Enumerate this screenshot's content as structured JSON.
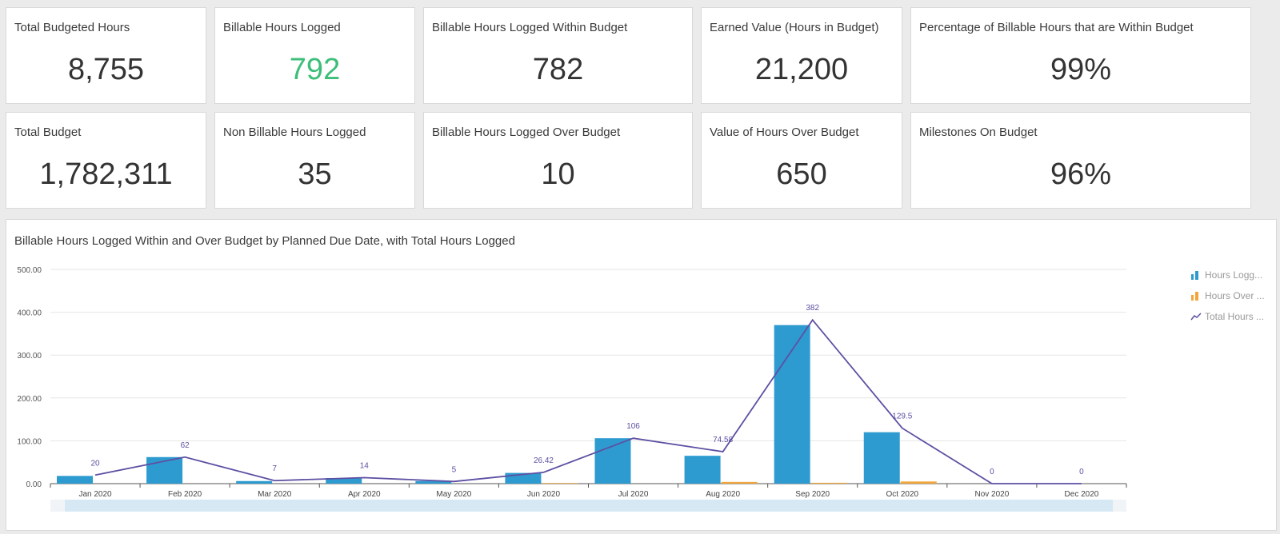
{
  "kpis": [
    {
      "label": "Total Budgeted Hours",
      "value": "8,755",
      "color": "#333333"
    },
    {
      "label": "Billable Hours Logged",
      "value": "792",
      "color": "#3cbe78"
    },
    {
      "label": "Billable Hours Logged Within Budget",
      "value": "782",
      "color": "#333333"
    },
    {
      "label": "Earned Value (Hours in Budget)",
      "value": "21,200",
      "color": "#333333"
    },
    {
      "label": "Percentage of Billable Hours that are Within Budget",
      "value": "99%",
      "color": "#333333"
    },
    {
      "label": "Total Budget",
      "value": "1,782,311",
      "color": "#333333"
    },
    {
      "label": "Non Billable Hours Logged",
      "value": "35",
      "color": "#333333"
    },
    {
      "label": "Billable Hours Logged Over Budget",
      "value": "10",
      "color": "#333333"
    },
    {
      "label": "Value of Hours Over Budget",
      "value": "650",
      "color": "#333333"
    },
    {
      "label": "Milestones On Budget",
      "value": "96%",
      "color": "#333333"
    }
  ],
  "chart": {
    "title": "Billable Hours Logged Within and Over Budget by Planned Due Date, with Total Hours Logged"
  },
  "legend": [
    {
      "label": "Hours Logg...",
      "icon": "bar-chart-icon",
      "color": "#2e9bd0"
    },
    {
      "label": "Hours Over ...",
      "icon": "bar-chart-icon",
      "color": "#f2a53a"
    },
    {
      "label": "Total Hours ...",
      "icon": "line-chart-icon",
      "color": "#5e4fa2"
    }
  ],
  "chart_data": {
    "type": "bar",
    "title": "Billable Hours Logged Within and Over Budget by Planned Due Date, with Total Hours Logged",
    "categories": [
      "Jan 2020",
      "Feb 2020",
      "Mar 2020",
      "Apr 2020",
      "May 2020",
      "Jun 2020",
      "Jul 2020",
      "Aug 2020",
      "Sep 2020",
      "Oct 2020",
      "Nov 2020",
      "Dec 2020"
    ],
    "series": [
      {
        "name": "Hours Logg...",
        "type": "bar",
        "color": "#2e9bd0",
        "values": [
          18,
          62,
          6,
          13,
          6,
          25,
          106,
          65,
          370,
          120,
          0,
          0
        ]
      },
      {
        "name": "Hours Over ...",
        "type": "bar",
        "color": "#f2a53a",
        "values": [
          0,
          0,
          0,
          0,
          0,
          1.5,
          0,
          4,
          2,
          5,
          0,
          0
        ]
      },
      {
        "name": "Total Hours ...",
        "type": "line",
        "color": "#5e4fa2",
        "values": [
          20,
          62,
          7,
          14,
          5,
          26.42,
          106,
          74.58,
          382,
          129.5,
          0,
          0
        ],
        "labels": [
          "20",
          "62",
          "7",
          "14",
          "5",
          "26.42",
          "106",
          "74.58",
          "382",
          "129.5",
          "0",
          "0"
        ]
      }
    ],
    "yticks": [
      "0.00",
      "100.00",
      "200.00",
      "300.00",
      "400.00",
      "500.00"
    ],
    "ylim": [
      0,
      500
    ],
    "grid": true,
    "legend_position": "right"
  }
}
